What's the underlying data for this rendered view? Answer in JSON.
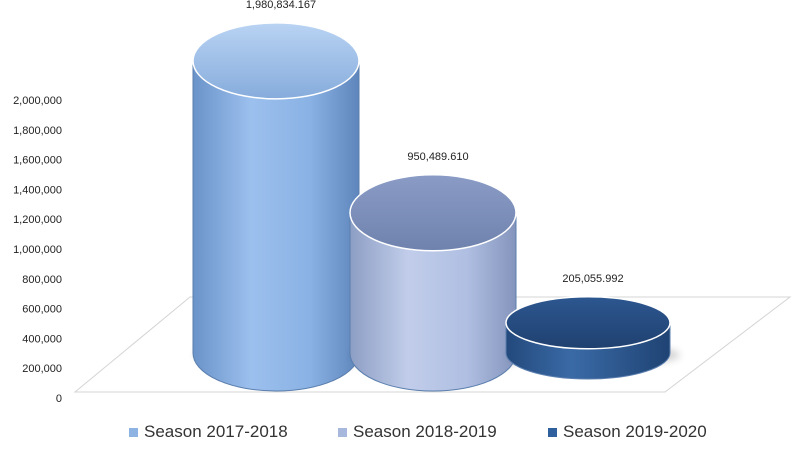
{
  "chart_data": {
    "type": "bar",
    "categories": [
      "Season 2017-2018",
      "Season 2018-2019",
      "Season 2019-2020"
    ],
    "values": [
      1980834.167,
      950489.61,
      205055.992
    ],
    "value_labels": [
      "1,980,834.167",
      "950,489.610",
      "205,055.992"
    ],
    "ylim": [
      0,
      2000000
    ],
    "yticks": [
      0,
      200000,
      400000,
      600000,
      800000,
      1000000,
      1200000,
      1400000,
      1600000,
      1800000,
      2000000
    ],
    "ytick_labels": [
      "0",
      "200,000",
      "400,000",
      "600,000",
      "800,000",
      "1,000,000",
      "1,200,000",
      "1,400,000",
      "1,600,000",
      "1,800,000",
      "2,000,000"
    ],
    "colors": [
      "#8db3e2",
      "#a7b8dc",
      "#2f5f9c"
    ],
    "style": "3d-cylinder",
    "legend_position": "bottom",
    "grid": false
  },
  "legend": {
    "items": [
      "Season 2017-2018",
      "Season 2018-2019",
      "Season 2019-2020"
    ]
  }
}
